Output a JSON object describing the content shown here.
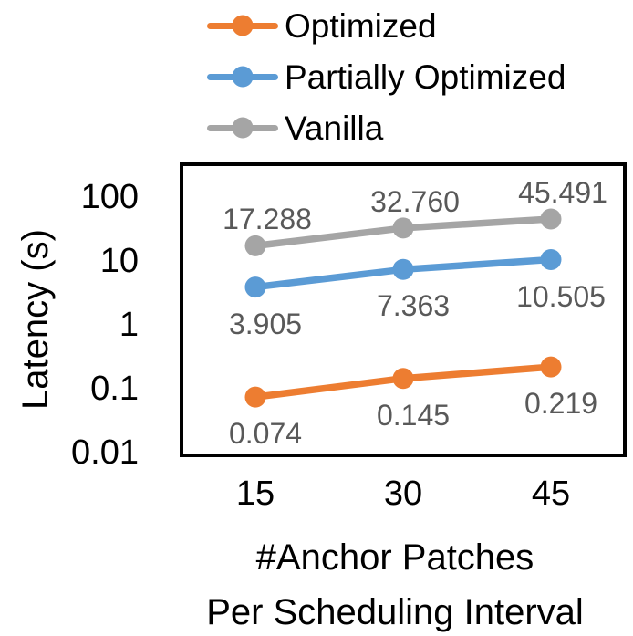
{
  "chart_data": {
    "type": "line",
    "title": "",
    "ylabel": "Latency (s)",
    "xlabel_line1": "#Anchor Patches",
    "xlabel_line2": "Per Scheduling Interval",
    "categories": [
      "15",
      "30",
      "45"
    ],
    "y_axis": {
      "scale": "log",
      "tick_labels": [
        "100",
        "10",
        "1",
        "0.1",
        "0.01"
      ],
      "tick_values": [
        100,
        10,
        1,
        0.1,
        0.01
      ],
      "min": 0.01,
      "max": 100
    },
    "grid": false,
    "legend_position": "top-left",
    "series": [
      {
        "name": "Optimized",
        "color": "#ED7D31",
        "values": [
          0.074,
          0.145,
          0.219
        ],
        "labels": [
          "0.074",
          "0.145",
          "0.219"
        ],
        "label_position": "below"
      },
      {
        "name": "Partially Optimized",
        "color": "#5B9BD5",
        "values": [
          3.905,
          7.363,
          10.505
        ],
        "labels": [
          "3.905",
          "7.363",
          "10.505"
        ],
        "label_position": "below"
      },
      {
        "name": "Vanilla",
        "color": "#A5A5A5",
        "values": [
          17.288,
          32.76,
          45.491
        ],
        "labels": [
          "17.288",
          "32.760",
          "45.491"
        ],
        "label_position": "above"
      }
    ],
    "colors": {
      "data_label": "#595959",
      "axis_text": "#000000",
      "plot_border": "#000000"
    }
  }
}
